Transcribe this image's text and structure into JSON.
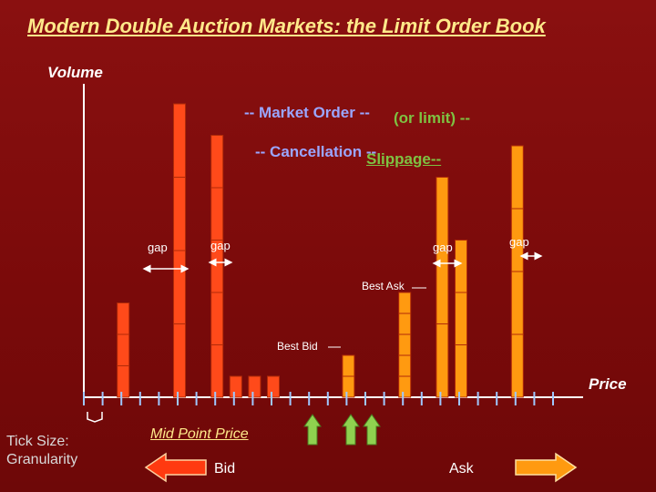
{
  "title": "Modern Double Auction Markets: the Limit Order Book",
  "axes": {
    "y_label": "Volume",
    "x_label": "Price"
  },
  "overlays": {
    "market_order": "-- Market Order --",
    "or_limit": "(or limit) --",
    "cancellation": "-- Cancellation --",
    "slippage": "Slippage--"
  },
  "gaps": [
    "gap",
    "gap",
    "gap",
    "gap"
  ],
  "best_ask": "Best Ask",
  "best_bid": "Best Bid",
  "tick_size": {
    "line1": "Tick Size:",
    "line2": "Granularity"
  },
  "mid_point_price": "Mid Point Price",
  "bid_label": "Bid",
  "ask_label": "Ask",
  "colors": {
    "background": "#7a0a0a",
    "bid_bar": "#ff4a1a",
    "ask_bar": "#ff9a10",
    "title": "#ffe98a",
    "arrow_green": "#8fd14f",
    "overlay_green": "#7ec242",
    "overlay_blue": "#9aa6ff"
  },
  "chart_data": {
    "type": "bar",
    "bid_series": [
      {
        "tick": 2,
        "blocks": [
          3,
          3,
          3
        ]
      },
      {
        "tick": 5,
        "blocks": [
          7,
          7,
          7,
          7
        ]
      },
      {
        "tick": 7,
        "blocks": [
          5,
          5,
          5,
          5,
          5
        ]
      },
      {
        "tick": 8,
        "blocks": [
          2
        ]
      },
      {
        "tick": 9,
        "blocks": [
          2
        ]
      },
      {
        "tick": 10,
        "blocks": [
          2
        ]
      }
    ],
    "ask_series": [
      {
        "tick": 14,
        "blocks": [
          2,
          2
        ]
      },
      {
        "tick": 17,
        "blocks": [
          2,
          2,
          2,
          2,
          2
        ]
      },
      {
        "tick": 19,
        "blocks": [
          7,
          7,
          7
        ]
      },
      {
        "tick": 20,
        "blocks": [
          5,
          5,
          5
        ]
      },
      {
        "tick": 23,
        "blocks": [
          6,
          6,
          6,
          6
        ]
      }
    ],
    "tick_count": 26
  }
}
